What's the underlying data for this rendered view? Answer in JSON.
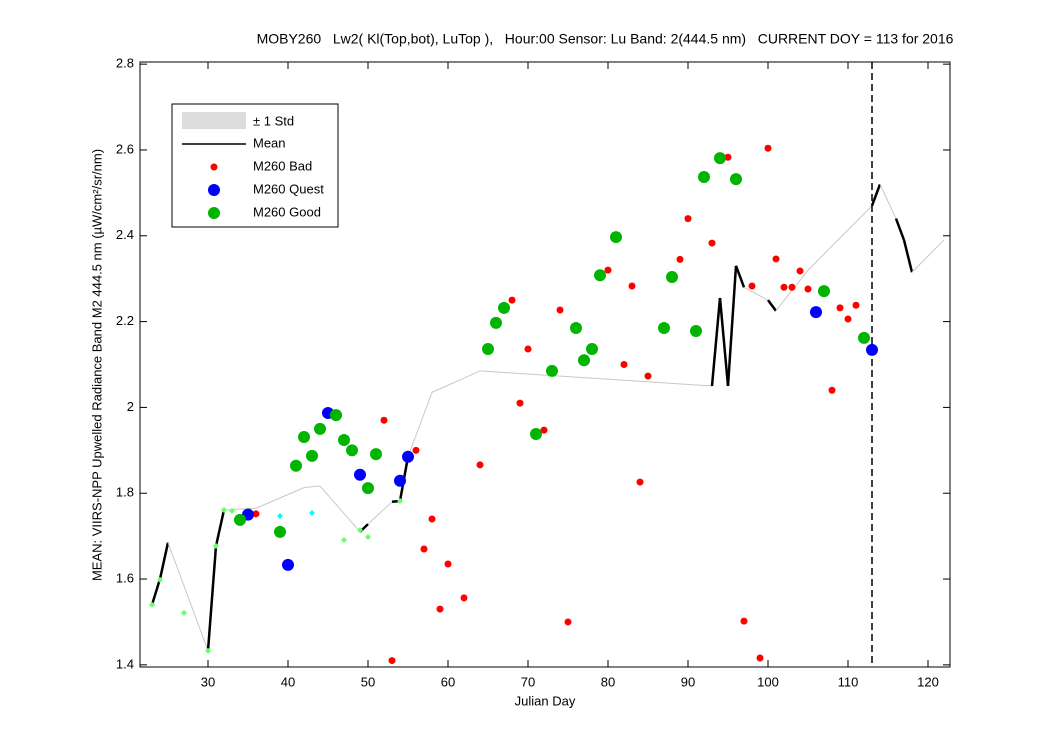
{
  "chart_data": {
    "type": "scatter",
    "title": "MOBY260   Lw2( Kl(Top,bot), LuTop ),   Hour:00 Sensor: Lu Band: 2(444.5 nm)   CURRENT DOY = 113 for 2016",
    "xlabel": "Julian Day",
    "ylabel": "MEAN: VIIRS-NPP Upwelled Radiance Band M2 444.5 nm (µW/cm²/sr/nm)",
    "xlim": [
      21.5,
      122.75
    ],
    "ylim": [
      1.395,
      2.805
    ],
    "xticks": [
      30,
      40,
      50,
      60,
      70,
      80,
      90,
      100,
      110,
      120
    ],
    "yticks": [
      1.4,
      1.6,
      1.8,
      2,
      2.2,
      2.4,
      2.6,
      2.8
    ],
    "vline": 113,
    "std_name": "± 1 Std",
    "mean": {
      "name": "Mean",
      "color": "#000000",
      "x": [
        23,
        24,
        25,
        30,
        31,
        32,
        36,
        42,
        44,
        49,
        50,
        53,
        54,
        55,
        58,
        64,
        93,
        94,
        95,
        96,
        97,
        100,
        101,
        105,
        113,
        114,
        116,
        117,
        118,
        122
      ],
      "values": [
        1.54,
        1.6,
        1.685,
        1.433,
        1.677,
        1.761,
        1.765,
        1.813,
        1.817,
        1.71,
        1.728,
        1.78,
        1.782,
        1.885,
        2.035,
        2.085,
        2.05,
        2.255,
        2.05,
        2.33,
        2.28,
        2.25,
        2.225,
        2.32,
        2.47,
        2.52,
        2.44,
        2.39,
        2.315,
        2.39
      ]
    },
    "series": [
      {
        "name": "M260 Bad",
        "color": "#ff0000",
        "size": 3.5,
        "x": [
          36,
          52,
          56,
          58,
          57,
          60,
          59,
          62,
          53,
          64,
          68,
          70,
          69,
          72,
          74,
          75,
          80,
          82,
          83,
          84,
          85,
          89,
          90,
          93,
          95,
          97,
          98,
          99,
          100,
          101,
          102,
          103,
          104,
          105,
          108,
          109,
          110,
          111
        ],
        "values": [
          1.752,
          1.97,
          1.9,
          1.74,
          1.67,
          1.635,
          1.53,
          1.556,
          1.41,
          1.866,
          2.25,
          2.136,
          2.01,
          1.947,
          2.227,
          1.5,
          2.32,
          2.1,
          2.283,
          1.826,
          2.073,
          2.345,
          2.44,
          2.383,
          2.583,
          1.502,
          2.283,
          1.416,
          2.604,
          2.346,
          2.28,
          2.28,
          2.318,
          2.276,
          2.04,
          2.232,
          2.206,
          2.238
        ]
      },
      {
        "name": "M260 Quest",
        "color": "#0000ff",
        "size": 6,
        "x": [
          35,
          40,
          45,
          49,
          54,
          55,
          106,
          113
        ],
        "values": [
          1.75,
          1.633,
          1.987,
          1.843,
          1.829,
          1.885,
          2.222,
          2.134
        ]
      },
      {
        "name": "M260 Good",
        "color": "#00b400",
        "size": 6,
        "x": [
          34,
          39,
          41,
          42,
          43,
          44,
          46,
          47,
          48,
          50,
          51,
          65,
          66,
          67,
          71,
          73,
          76,
          77,
          78,
          79,
          81,
          87,
          88,
          91,
          92,
          94,
          96,
          107,
          112
        ],
        "values": [
          1.738,
          1.71,
          1.864,
          1.931,
          1.887,
          1.95,
          1.982,
          1.924,
          1.9,
          1.812,
          1.891,
          2.136,
          2.197,
          2.232,
          1.938,
          2.085,
          2.185,
          2.11,
          2.136,
          2.308,
          2.397,
          2.185,
          2.304,
          2.178,
          2.537,
          2.581,
          2.532,
          2.271,
          2.162
        ]
      },
      {
        "color": "#66ff66",
        "marker": "diamond",
        "size": 3,
        "x": [
          23,
          24,
          27,
          30,
          31,
          32,
          33,
          47,
          49,
          50,
          54
        ],
        "values": [
          1.54,
          1.598,
          1.521,
          1.433,
          1.677,
          1.761,
          1.759,
          1.691,
          1.714,
          1.698,
          1.782
        ]
      },
      {
        "color": "#00ffff",
        "marker": "diamond",
        "size": 3,
        "x": [
          39,
          43
        ],
        "values": [
          1.747,
          1.754
        ]
      }
    ]
  }
}
